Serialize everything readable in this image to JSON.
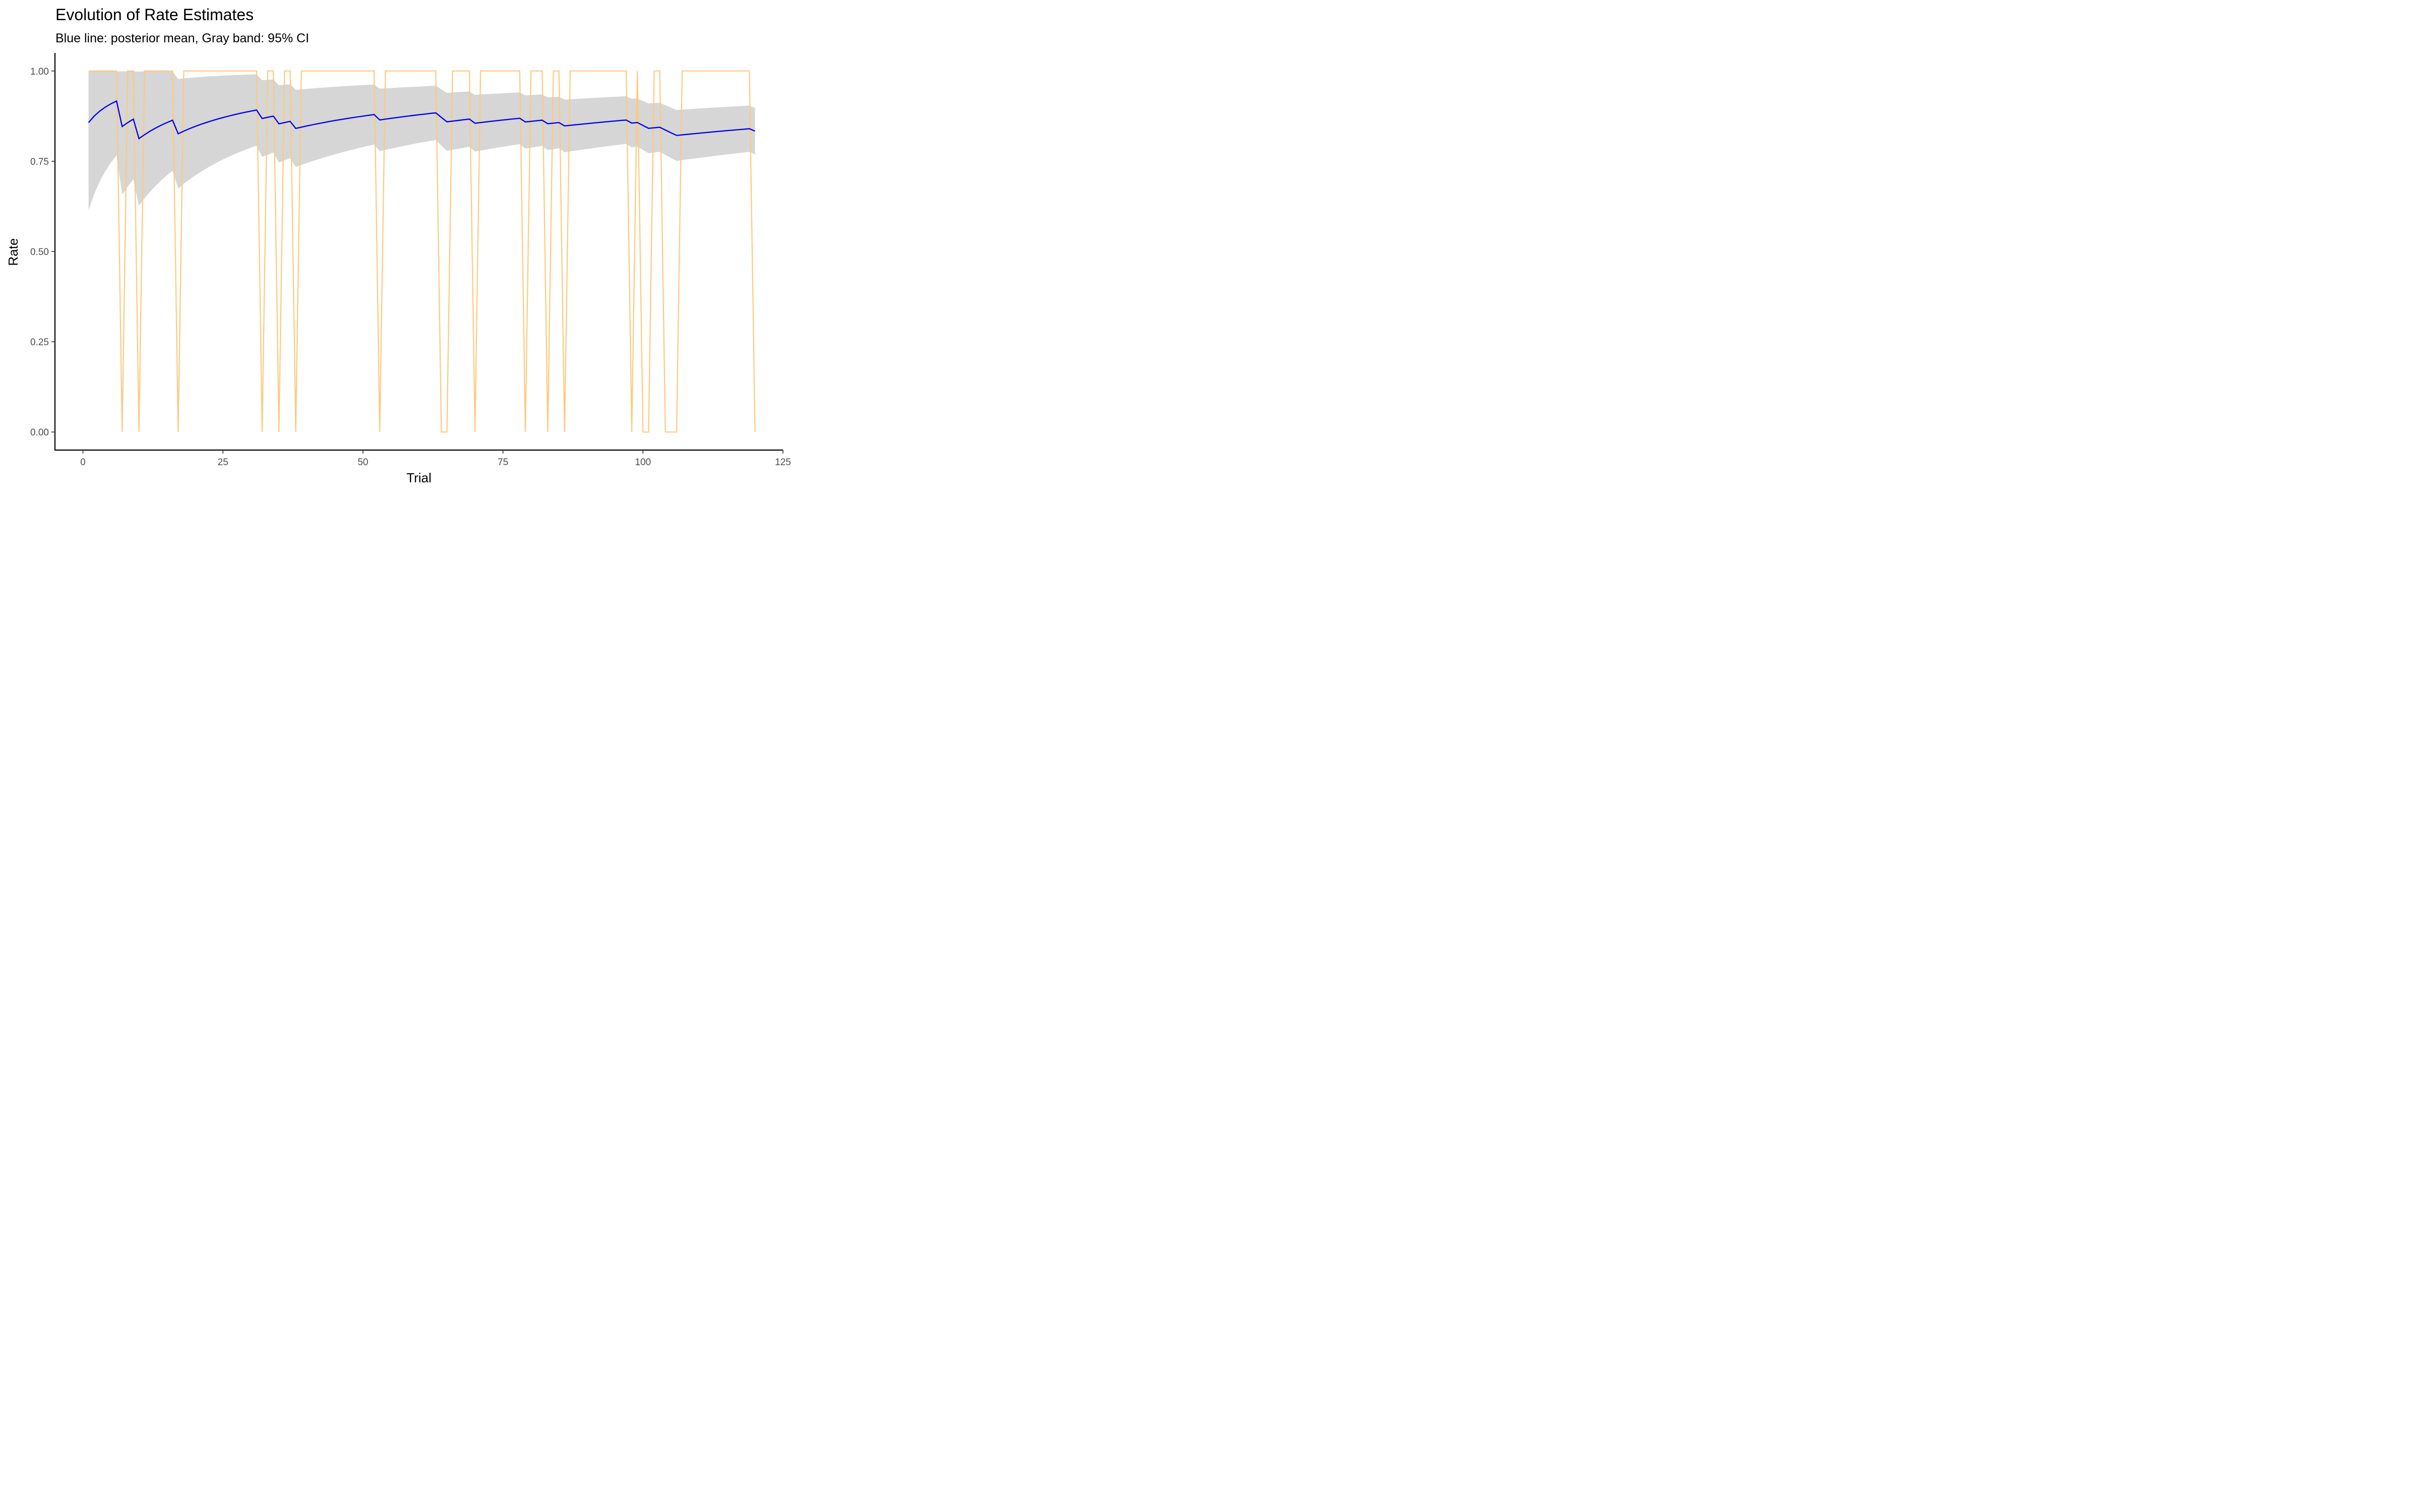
{
  "chart_data": {
    "type": "line",
    "title": "Evolution of Rate Estimates",
    "subtitle": "Blue line: posterior mean, Gray band: 95% CI",
    "xlabel": "Trial",
    "ylabel": "Rate",
    "xlim": [
      -5,
      125
    ],
    "ylim": [
      -0.05,
      1.05
    ],
    "x_ticks": [
      0,
      25,
      50,
      75,
      100,
      125
    ],
    "x_tick_labels": [
      "0",
      "25",
      "50",
      "75",
      "100",
      "125"
    ],
    "y_ticks": [
      0,
      0.25,
      0.5,
      0.75,
      1.0
    ],
    "y_tick_labels": [
      "0.00",
      "0.25",
      "0.50",
      "0.75",
      "1.00"
    ],
    "grid": false,
    "legend": "none",
    "trials_start": 1,
    "trials_end": 120,
    "zero_trials": [
      7,
      10,
      17,
      32,
      35,
      38,
      53,
      64,
      65,
      70,
      79,
      83,
      86,
      98,
      100,
      101,
      104,
      105,
      106,
      120
    ],
    "colors": {
      "observed": "#fdc97c",
      "posterior_mean": "#0000ee",
      "ci_band": "#d6d6d6"
    }
  }
}
